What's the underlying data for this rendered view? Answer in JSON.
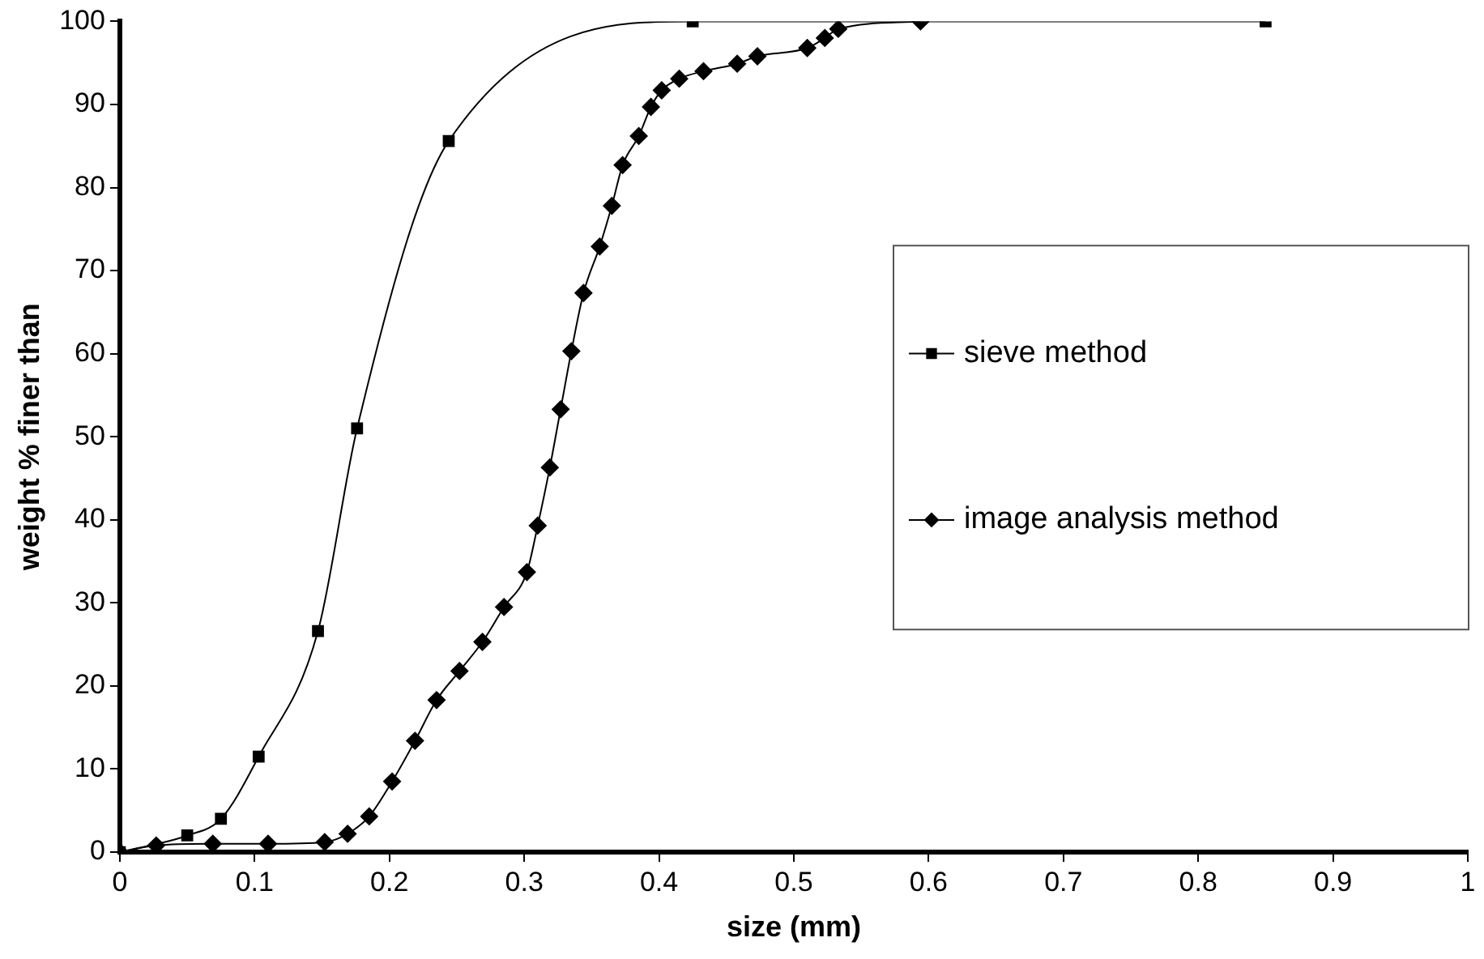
{
  "chart_data": {
    "type": "line",
    "xlabel": "size (mm)",
    "ylabel": "weight % finer than",
    "xlim": [
      0,
      1
    ],
    "xticks": [
      0,
      0.1,
      0.2,
      0.3,
      0.4,
      0.5,
      0.6,
      0.7,
      0.8,
      0.9,
      1
    ],
    "ylim": [
      0,
      100
    ],
    "yticks": [
      0,
      10,
      20,
      30,
      40,
      50,
      60,
      70,
      80,
      90,
      100
    ],
    "grid": false,
    "legend": "right",
    "line_style": "solid",
    "series": [
      {
        "name": "sieve method",
        "color": "#000000",
        "marker": "square",
        "x": [
          0,
          0.05,
          0.075,
          0.103,
          0.147,
          0.176,
          0.244,
          0.425,
          0.85
        ],
        "values": [
          0,
          2,
          4,
          11.5,
          26.6,
          51,
          85.6,
          100,
          100
        ]
      },
      {
        "name": "image analysis method",
        "color": "#000000",
        "marker": "diamond",
        "x": [
          0,
          0.027,
          0.069,
          0.11,
          0.152,
          0.169,
          0.185,
          0.202,
          0.219,
          0.235,
          0.252,
          0.269,
          0.285,
          0.302,
          0.31,
          0.319,
          0.327,
          0.335,
          0.344,
          0.356,
          0.365,
          0.373,
          0.385,
          0.394,
          0.402,
          0.415,
          0.433,
          0.458,
          0.473,
          0.51,
          0.523,
          0.533,
          0.594
        ],
        "values": [
          0,
          0.8,
          1,
          1,
          1.2,
          2.2,
          4.3,
          8.5,
          13.4,
          18.3,
          21.8,
          25.3,
          29.5,
          33.7,
          39.3,
          46.3,
          53.3,
          60.3,
          67.3,
          72.9,
          77.8,
          82.7,
          86.2,
          89.7,
          91.7,
          93.1,
          94,
          94.9,
          95.8,
          96.8,
          98,
          99.1,
          100
        ]
      }
    ]
  }
}
